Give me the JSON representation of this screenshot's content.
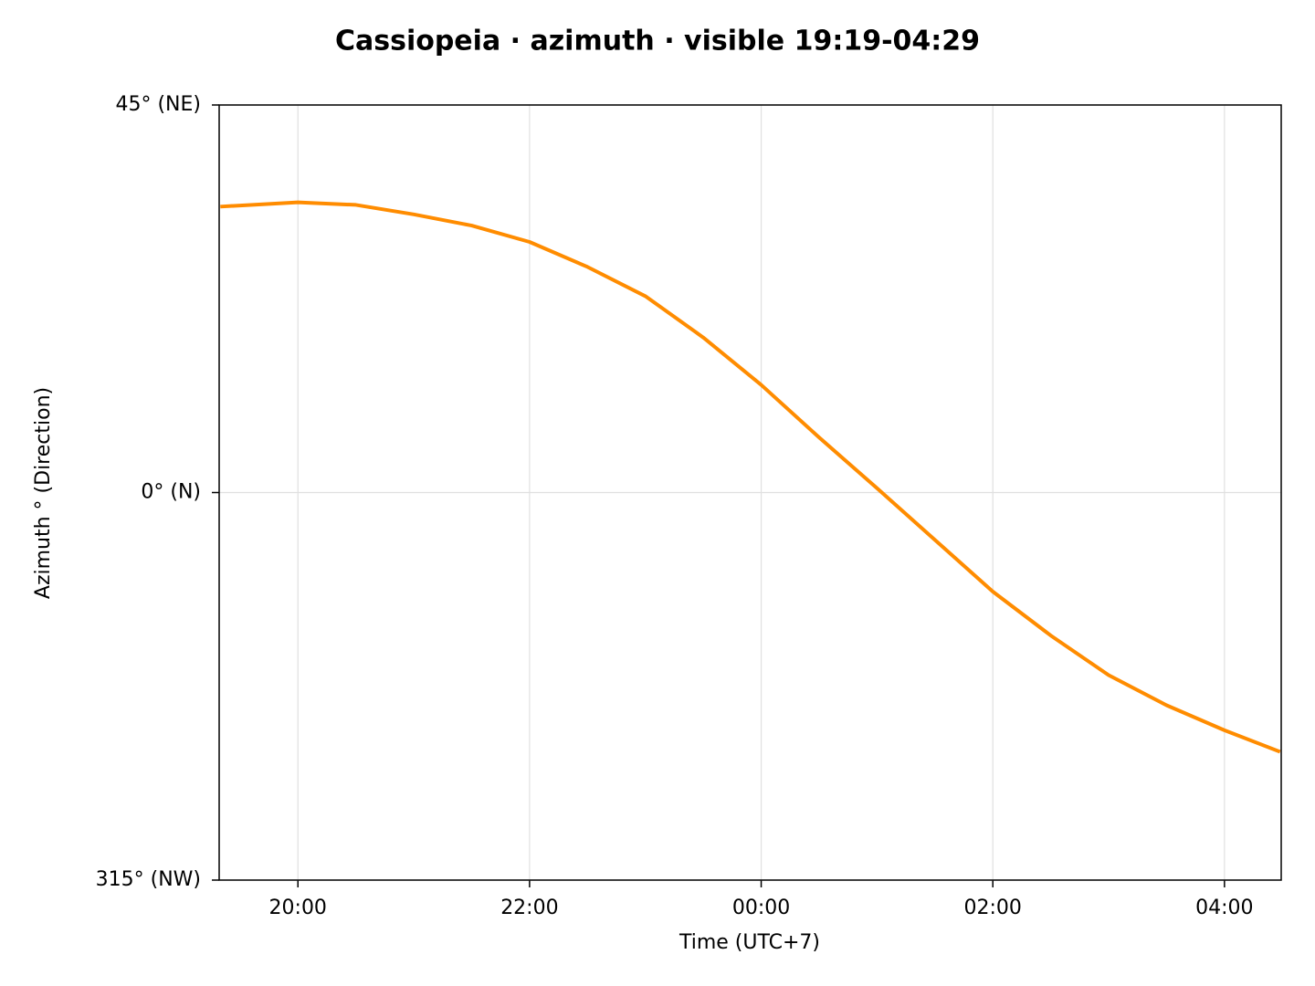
{
  "chart_data": {
    "type": "line",
    "title": "Cassiopeia · azimuth · visible 19:19-04:29",
    "x_label": "Time (UTC+7)",
    "y_label": "Azimuth ° (Direction)",
    "x": [
      19.33,
      20,
      20.5,
      21,
      21.5,
      22,
      22.5,
      23,
      23.5,
      24,
      24.5,
      25,
      25.5,
      26,
      26.5,
      27,
      27.5,
      28,
      28.48
    ],
    "series": [
      {
        "name": "Cassiopeia",
        "color": "#ff8c00",
        "values": [
          33.2,
          33.7,
          33.4,
          32.3,
          31.0,
          29.1,
          26.2,
          22.8,
          18.0,
          12.5,
          6.4,
          0.5,
          -5.5,
          -11.5,
          -16.6,
          -21.2,
          -24.7,
          -27.6,
          -30.1
        ]
      }
    ],
    "xlim": [
      19.32,
      28.49
    ],
    "xticks": [
      {
        "value": 20,
        "label": "20:00"
      },
      {
        "value": 22,
        "label": "22:00"
      },
      {
        "value": 24,
        "label": "00:00"
      },
      {
        "value": 26,
        "label": "02:00"
      },
      {
        "value": 28,
        "label": "04:00"
      }
    ],
    "ylim": [
      -45,
      45
    ],
    "yticks": [
      {
        "value": -45,
        "label": "315° (NW)"
      },
      {
        "value": 0,
        "label": "0° (N)"
      },
      {
        "value": 45,
        "label": "45° (NE)"
      }
    ],
    "grid": true
  }
}
